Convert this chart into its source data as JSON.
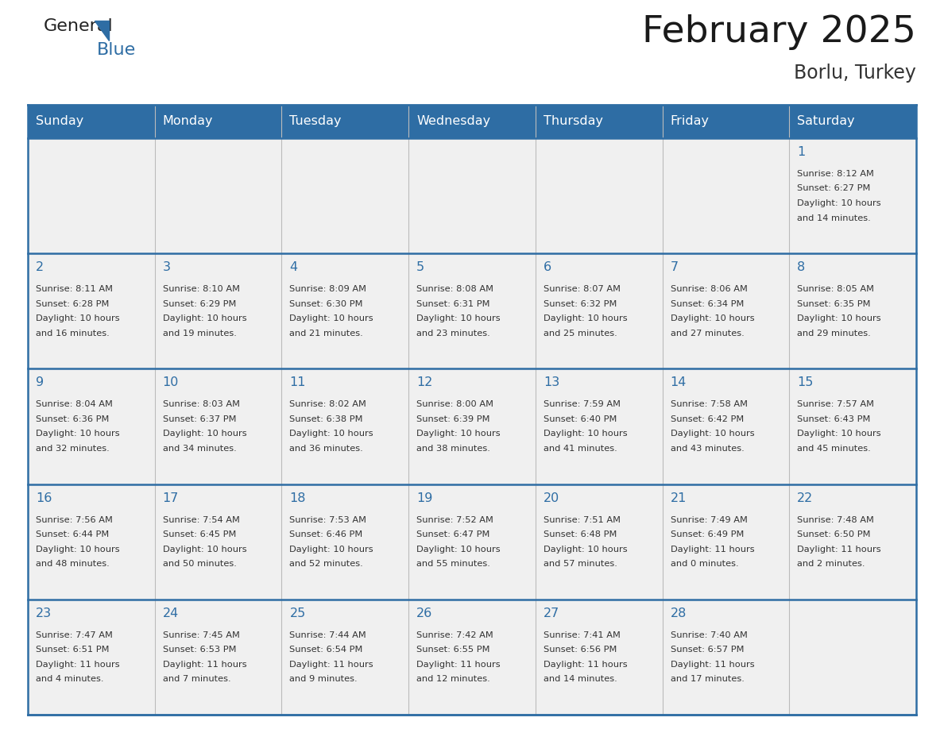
{
  "title": "February 2025",
  "subtitle": "Borlu, Turkey",
  "header_bg": "#2E6DA4",
  "header_text_color": "#FFFFFF",
  "cell_bg_light": "#F0F0F0",
  "border_color": "#2E6DA4",
  "grid_color": "#BBBBBB",
  "day_names": [
    "Sunday",
    "Monday",
    "Tuesday",
    "Wednesday",
    "Thursday",
    "Friday",
    "Saturday"
  ],
  "title_color": "#1a1a1a",
  "subtitle_color": "#333333",
  "day_num_color": "#2E6DA4",
  "info_color": "#333333",
  "calendar": [
    [
      null,
      null,
      null,
      null,
      null,
      null,
      {
        "day": 1,
        "sunrise": "8:12 AM",
        "sunset": "6:27 PM",
        "daylight": "10 hours",
        "daylight2": "and 14 minutes."
      }
    ],
    [
      {
        "day": 2,
        "sunrise": "8:11 AM",
        "sunset": "6:28 PM",
        "daylight": "10 hours",
        "daylight2": "and 16 minutes."
      },
      {
        "day": 3,
        "sunrise": "8:10 AM",
        "sunset": "6:29 PM",
        "daylight": "10 hours",
        "daylight2": "and 19 minutes."
      },
      {
        "day": 4,
        "sunrise": "8:09 AM",
        "sunset": "6:30 PM",
        "daylight": "10 hours",
        "daylight2": "and 21 minutes."
      },
      {
        "day": 5,
        "sunrise": "8:08 AM",
        "sunset": "6:31 PM",
        "daylight": "10 hours",
        "daylight2": "and 23 minutes."
      },
      {
        "day": 6,
        "sunrise": "8:07 AM",
        "sunset": "6:32 PM",
        "daylight": "10 hours",
        "daylight2": "and 25 minutes."
      },
      {
        "day": 7,
        "sunrise": "8:06 AM",
        "sunset": "6:34 PM",
        "daylight": "10 hours",
        "daylight2": "and 27 minutes."
      },
      {
        "day": 8,
        "sunrise": "8:05 AM",
        "sunset": "6:35 PM",
        "daylight": "10 hours",
        "daylight2": "and 29 minutes."
      }
    ],
    [
      {
        "day": 9,
        "sunrise": "8:04 AM",
        "sunset": "6:36 PM",
        "daylight": "10 hours",
        "daylight2": "and 32 minutes."
      },
      {
        "day": 10,
        "sunrise": "8:03 AM",
        "sunset": "6:37 PM",
        "daylight": "10 hours",
        "daylight2": "and 34 minutes."
      },
      {
        "day": 11,
        "sunrise": "8:02 AM",
        "sunset": "6:38 PM",
        "daylight": "10 hours",
        "daylight2": "and 36 minutes."
      },
      {
        "day": 12,
        "sunrise": "8:00 AM",
        "sunset": "6:39 PM",
        "daylight": "10 hours",
        "daylight2": "and 38 minutes."
      },
      {
        "day": 13,
        "sunrise": "7:59 AM",
        "sunset": "6:40 PM",
        "daylight": "10 hours",
        "daylight2": "and 41 minutes."
      },
      {
        "day": 14,
        "sunrise": "7:58 AM",
        "sunset": "6:42 PM",
        "daylight": "10 hours",
        "daylight2": "and 43 minutes."
      },
      {
        "day": 15,
        "sunrise": "7:57 AM",
        "sunset": "6:43 PM",
        "daylight": "10 hours",
        "daylight2": "and 45 minutes."
      }
    ],
    [
      {
        "day": 16,
        "sunrise": "7:56 AM",
        "sunset": "6:44 PM",
        "daylight": "10 hours",
        "daylight2": "and 48 minutes."
      },
      {
        "day": 17,
        "sunrise": "7:54 AM",
        "sunset": "6:45 PM",
        "daylight": "10 hours",
        "daylight2": "and 50 minutes."
      },
      {
        "day": 18,
        "sunrise": "7:53 AM",
        "sunset": "6:46 PM",
        "daylight": "10 hours",
        "daylight2": "and 52 minutes."
      },
      {
        "day": 19,
        "sunrise": "7:52 AM",
        "sunset": "6:47 PM",
        "daylight": "10 hours",
        "daylight2": "and 55 minutes."
      },
      {
        "day": 20,
        "sunrise": "7:51 AM",
        "sunset": "6:48 PM",
        "daylight": "10 hours",
        "daylight2": "and 57 minutes."
      },
      {
        "day": 21,
        "sunrise": "7:49 AM",
        "sunset": "6:49 PM",
        "daylight": "11 hours",
        "daylight2": "and 0 minutes."
      },
      {
        "day": 22,
        "sunrise": "7:48 AM",
        "sunset": "6:50 PM",
        "daylight": "11 hours",
        "daylight2": "and 2 minutes."
      }
    ],
    [
      {
        "day": 23,
        "sunrise": "7:47 AM",
        "sunset": "6:51 PM",
        "daylight": "11 hours",
        "daylight2": "and 4 minutes."
      },
      {
        "day": 24,
        "sunrise": "7:45 AM",
        "sunset": "6:53 PM",
        "daylight": "11 hours",
        "daylight2": "and 7 minutes."
      },
      {
        "day": 25,
        "sunrise": "7:44 AM",
        "sunset": "6:54 PM",
        "daylight": "11 hours",
        "daylight2": "and 9 minutes."
      },
      {
        "day": 26,
        "sunrise": "7:42 AM",
        "sunset": "6:55 PM",
        "daylight": "11 hours",
        "daylight2": "and 12 minutes."
      },
      {
        "day": 27,
        "sunrise": "7:41 AM",
        "sunset": "6:56 PM",
        "daylight": "11 hours",
        "daylight2": "and 14 minutes."
      },
      {
        "day": 28,
        "sunrise": "7:40 AM",
        "sunset": "6:57 PM",
        "daylight": "11 hours",
        "daylight2": "and 17 minutes."
      },
      null
    ]
  ]
}
